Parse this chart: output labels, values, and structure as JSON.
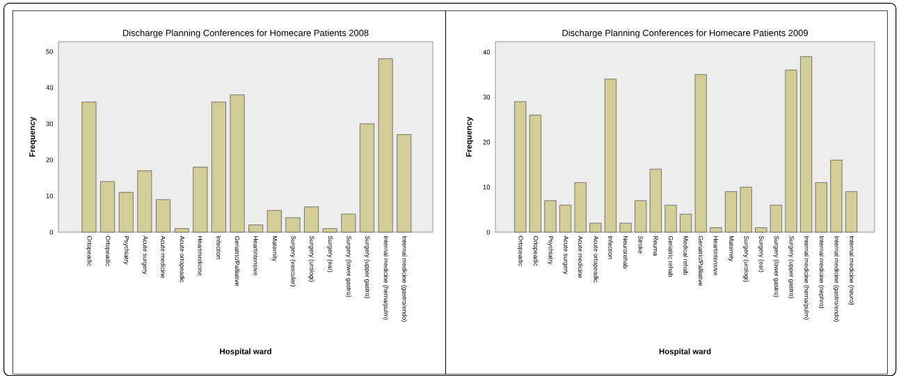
{
  "chart_data": [
    {
      "type": "bar",
      "title": "Discharge Planning Conferences for Homecare Patients 2008",
      "xlabel": "Hospital ward",
      "ylabel": "Frequency",
      "categories": [
        "Ortopeadic",
        "Ortopeadic",
        "Psychiatry",
        "Acute surgery",
        "Acute medicine",
        "Acute ortopeadic",
        "Heartmedicine",
        "Infection",
        "Geriatric/Palliative",
        "Heartintensive",
        "Maternity",
        "Surgery (vascular)",
        "Surgery (urologi)",
        "Surgery (ear)",
        "Surgery (lower gastro)",
        "Surgery (upper gastro)",
        "Internal medicine (hema/pulm)",
        "Internal medicine (gastro/endo)"
      ],
      "values": [
        36,
        14,
        11,
        17,
        9,
        1,
        18,
        36,
        38,
        2,
        6,
        4,
        7,
        1,
        5,
        30,
        48,
        27
      ],
      "color": "#d3ce97",
      "ylim": [
        0,
        52.7
      ],
      "yticks": [
        0,
        10,
        20,
        30,
        40,
        50
      ]
    },
    {
      "type": "bar",
      "title": "Discharge Planning Conferences for Homecare Patients 2009",
      "xlabel": "Hospital ward",
      "ylabel": "Frequency",
      "categories": [
        "Ortopeadic",
        "Ortopeadic",
        "Psychiatry",
        "Acute surgery",
        "Acute medicine",
        "Acute ortopeadic",
        "Infection",
        "Neurorehab",
        "Stroke",
        "Reuma",
        "Geriatric rehab",
        "Medical rehab",
        "Geriatric/Palliative",
        "Heartintensive",
        "Maternity",
        "Surgery (urologi)",
        "Surgery (ear)",
        "Surgery (lower gastro)",
        "Surgery (upper gastro)",
        "Internal medicine (hema/pulm)",
        "Internal medicine (nephro)",
        "Internal medicine (gastro/endo)",
        "Internal medicine (neuro)"
      ],
      "values": [
        29,
        26,
        7,
        6,
        11,
        2,
        34,
        2,
        7,
        14,
        6,
        4,
        35,
        1,
        9,
        10,
        1,
        6,
        36,
        39,
        11,
        16,
        9
      ],
      "color": "#d3ce97",
      "ylim": [
        0,
        42.3
      ],
      "yticks": [
        0,
        10,
        20,
        30,
        40
      ]
    }
  ]
}
